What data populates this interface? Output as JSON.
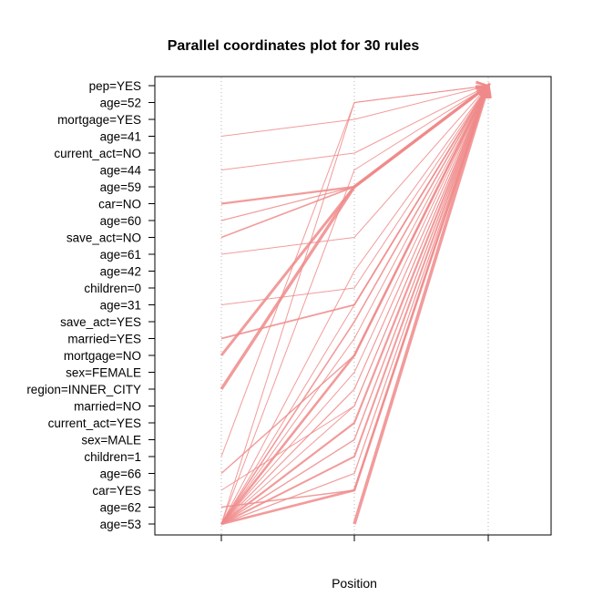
{
  "chart_data": {
    "type": "parallel_coordinates",
    "title": "Parallel coordinates plot for 30 rules",
    "xlabel": "Position",
    "x_positions": [
      1,
      2,
      3
    ],
    "y_items": [
      "pep=YES",
      "age=52",
      "mortgage=YES",
      "age=41",
      "current_act=NO",
      "age=44",
      "age=59",
      "car=NO",
      "age=60",
      "save_act=NO",
      "age=61",
      "age=42",
      "children=0",
      "age=31",
      "save_act=YES",
      "married=YES",
      "mortgage=NO",
      "sex=FEMALE",
      "region=INNER_CITY",
      "married=NO",
      "current_act=YES",
      "sex=MALE",
      "children=1",
      "age=66",
      "car=YES",
      "age=62",
      "age=53"
    ],
    "line_color": "#F08A8A",
    "grid": "vertical dotted lines at positions",
    "rules": [
      {
        "path": [
          [
            "age=41",
            1
          ],
          [
            "mortgage=YES",
            2
          ],
          [
            "pep=YES",
            3
          ]
        ],
        "weight": 1.0
      },
      {
        "path": [
          [
            "age=44",
            1
          ],
          [
            "current_act=NO",
            2
          ],
          [
            "pep=YES",
            3
          ]
        ],
        "weight": 1.0
      },
      {
        "path": [
          [
            "car=NO",
            1
          ],
          [
            "age=59",
            2
          ],
          [
            "pep=YES",
            3
          ]
        ],
        "weight": 2.2
      },
      {
        "path": [
          [
            "age=60",
            1
          ],
          [
            "age=59",
            2
          ],
          [
            "pep=YES",
            3
          ]
        ],
        "weight": 1.2
      },
      {
        "path": [
          [
            "save_act=NO",
            1
          ],
          [
            "age=59",
            2
          ],
          [
            "pep=YES",
            3
          ]
        ],
        "weight": 1.6
      },
      {
        "path": [
          [
            "age=61",
            1
          ],
          [
            "save_act=NO",
            2
          ],
          [
            "pep=YES",
            3
          ]
        ],
        "weight": 1.0
      },
      {
        "path": [
          [
            "age=31",
            1
          ],
          [
            "children=0",
            2
          ],
          [
            "pep=YES",
            3
          ]
        ],
        "weight": 1.0
      },
      {
        "path": [
          [
            "married=YES",
            1
          ],
          [
            "age=31",
            2
          ],
          [
            "pep=YES",
            3
          ]
        ],
        "weight": 1.8
      },
      {
        "path": [
          [
            "mortgage=NO",
            1
          ],
          [
            "age=59",
            2
          ],
          [
            "pep=YES",
            3
          ]
        ],
        "weight": 3.0
      },
      {
        "path": [
          [
            "region=INNER_CITY",
            1
          ],
          [
            "age=59",
            2
          ],
          [
            "pep=YES",
            3
          ]
        ],
        "weight": 3.4
      },
      {
        "path": [
          [
            "children=1",
            1
          ],
          [
            "age=52",
            2
          ],
          [
            "pep=YES",
            3
          ]
        ],
        "weight": 1.0
      },
      {
        "path": [
          [
            "age=66",
            1
          ],
          [
            "mortgage=NO",
            2
          ],
          [
            "pep=YES",
            3
          ]
        ],
        "weight": 1.4
      },
      {
        "path": [
          [
            "car=YES",
            1
          ],
          [
            "married=NO",
            2
          ],
          [
            "pep=YES",
            3
          ]
        ],
        "weight": 1.0
      },
      {
        "path": [
          [
            "age=62",
            1
          ],
          [
            "car=YES",
            2
          ],
          [
            "pep=YES",
            3
          ]
        ],
        "weight": 1.4
      },
      {
        "path": [
          [
            "age=53",
            1
          ],
          [
            "age=52",
            2
          ],
          [
            "pep=YES",
            3
          ]
        ],
        "weight": 1.0
      },
      {
        "path": [
          [
            "age=53",
            1
          ],
          [
            "age=44",
            2
          ],
          [
            "pep=YES",
            3
          ]
        ],
        "weight": 1.0
      },
      {
        "path": [
          [
            "age=53",
            1
          ],
          [
            "age=42",
            2
          ],
          [
            "pep=YES",
            3
          ]
        ],
        "weight": 1.0
      },
      {
        "path": [
          [
            "age=53",
            1
          ],
          [
            "save_act=YES",
            2
          ],
          [
            "pep=YES",
            3
          ]
        ],
        "weight": 1.6
      },
      {
        "path": [
          [
            "age=53",
            1
          ],
          [
            "mortgage=NO",
            2
          ],
          [
            "pep=YES",
            3
          ]
        ],
        "weight": 2.6
      },
      {
        "path": [
          [
            "age=53",
            1
          ],
          [
            "region=INNER_CITY",
            2
          ],
          [
            "pep=YES",
            3
          ]
        ],
        "weight": 1.2
      },
      {
        "path": [
          [
            "age=53",
            1
          ],
          [
            "current_act=YES",
            2
          ],
          [
            "pep=YES",
            3
          ]
        ],
        "weight": 2.2
      },
      {
        "path": [
          [
            "age=53",
            1
          ],
          [
            "sex=MALE",
            2
          ],
          [
            "pep=YES",
            3
          ]
        ],
        "weight": 1.4
      },
      {
        "path": [
          [
            "age=53",
            1
          ],
          [
            "children=1",
            2
          ],
          [
            "pep=YES",
            3
          ]
        ],
        "weight": 2.0
      },
      {
        "path": [
          [
            "age=53",
            1
          ],
          [
            "age=66",
            2
          ],
          [
            "pep=YES",
            3
          ]
        ],
        "weight": 1.2
      },
      {
        "path": [
          [
            "age=53",
            1
          ],
          [
            "car=YES",
            2
          ],
          [
            "pep=YES",
            3
          ]
        ],
        "weight": 2.6
      },
      {
        "path": [
          [
            "age=53",
            1
          ],
          [
            "married=NO",
            2
          ],
          [
            "pep=YES",
            3
          ]
        ],
        "weight": 1.0
      },
      {
        "path": [
          [
            "age=53",
            1
          ],
          [
            "sex=FEMALE",
            2
          ],
          [
            "pep=YES",
            3
          ]
        ],
        "weight": 1.0
      },
      {
        "path": [
          [
            "age=53",
            1
          ],
          [
            "married=YES",
            2
          ],
          [
            "pep=YES",
            3
          ]
        ],
        "weight": 1.0
      },
      {
        "path": [
          [
            "age=53",
            2
          ],
          [
            "pep=YES",
            3
          ]
        ],
        "weight": 3.6
      },
      {
        "path": [
          [
            "age=53",
            1
          ],
          [
            "age=31",
            2
          ],
          [
            "pep=YES",
            3
          ]
        ],
        "weight": 1.0
      }
    ]
  }
}
